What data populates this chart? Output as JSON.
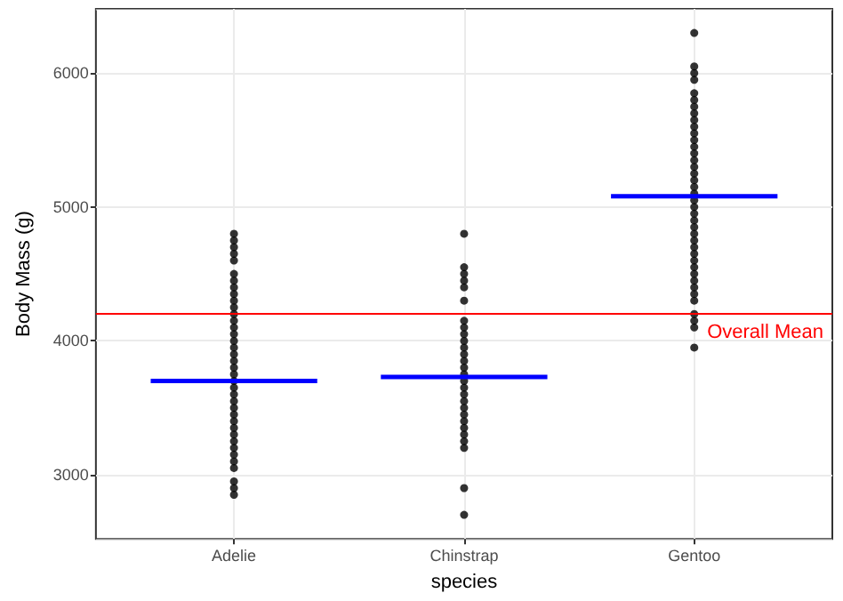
{
  "chart_data": {
    "type": "scatter",
    "xlabel": "species",
    "ylabel": "Body Mass (g)",
    "categories": [
      "Adelie",
      "Chinstrap",
      "Gentoo"
    ],
    "series": [
      {
        "color": "#000000",
        "x": [
          "Adelie",
          "Adelie",
          "Adelie",
          "Adelie",
          "Adelie",
          "Adelie",
          "Adelie",
          "Adelie",
          "Adelie",
          "Adelie",
          "Adelie",
          "Adelie",
          "Adelie",
          "Adelie",
          "Adelie",
          "Adelie",
          "Adelie",
          "Adelie",
          "Adelie",
          "Adelie",
          "Adelie",
          "Adelie",
          "Adelie",
          "Adelie",
          "Adelie",
          "Adelie",
          "Adelie",
          "Adelie",
          "Adelie",
          "Adelie",
          "Adelie",
          "Adelie",
          "Adelie",
          "Adelie",
          "Adelie",
          "Adelie",
          "Adelie",
          "Adelie"
        ],
        "values": [
          2850,
          2900,
          2950,
          3050,
          3100,
          3150,
          3200,
          3250,
          3300,
          3350,
          3400,
          3450,
          3500,
          3550,
          3600,
          3650,
          3700,
          3750,
          3800,
          3850,
          3900,
          3950,
          4000,
          4050,
          4100,
          4150,
          4200,
          4250,
          4300,
          4350,
          4400,
          4450,
          4500,
          4600,
          4650,
          4700,
          4750,
          4800
        ]
      },
      {
        "color": "#000000",
        "x": [
          "Chinstrap",
          "Chinstrap",
          "Chinstrap",
          "Chinstrap",
          "Chinstrap",
          "Chinstrap",
          "Chinstrap",
          "Chinstrap",
          "Chinstrap",
          "Chinstrap",
          "Chinstrap",
          "Chinstrap",
          "Chinstrap",
          "Chinstrap",
          "Chinstrap",
          "Chinstrap",
          "Chinstrap",
          "Chinstrap",
          "Chinstrap",
          "Chinstrap",
          "Chinstrap",
          "Chinstrap",
          "Chinstrap",
          "Chinstrap",
          "Chinstrap",
          "Chinstrap",
          "Chinstrap",
          "Chinstrap"
        ],
        "values": [
          2700,
          2900,
          3200,
          3250,
          3300,
          3350,
          3400,
          3450,
          3500,
          3550,
          3600,
          3650,
          3700,
          3750,
          3800,
          3850,
          3900,
          3950,
          4000,
          4050,
          4100,
          4150,
          4300,
          4400,
          4450,
          4500,
          4550,
          4800
        ]
      },
      {
        "color": "#000000",
        "x": [
          "Gentoo",
          "Gentoo",
          "Gentoo",
          "Gentoo",
          "Gentoo",
          "Gentoo",
          "Gentoo",
          "Gentoo",
          "Gentoo",
          "Gentoo",
          "Gentoo",
          "Gentoo",
          "Gentoo",
          "Gentoo",
          "Gentoo",
          "Gentoo",
          "Gentoo",
          "Gentoo",
          "Gentoo",
          "Gentoo",
          "Gentoo",
          "Gentoo",
          "Gentoo",
          "Gentoo",
          "Gentoo",
          "Gentoo",
          "Gentoo",
          "Gentoo",
          "Gentoo",
          "Gentoo",
          "Gentoo",
          "Gentoo",
          "Gentoo",
          "Gentoo",
          "Gentoo",
          "Gentoo",
          "Gentoo",
          "Gentoo",
          "Gentoo",
          "Gentoo"
        ],
        "values": [
          3950,
          4100,
          4150,
          4200,
          4300,
          4350,
          4400,
          4450,
          4500,
          4550,
          4600,
          4650,
          4700,
          4750,
          4800,
          4850,
          4900,
          4950,
          5000,
          5050,
          5100,
          5150,
          5200,
          5250,
          5300,
          5350,
          5400,
          5450,
          5500,
          5550,
          5600,
          5650,
          5700,
          5750,
          5800,
          5850,
          5950,
          6000,
          6050,
          6300
        ]
      },
      {
        "type": "box",
        "color": "#0000ff",
        "boxes": [
          {
            "low": 3700,
            "q1": 3700,
            "median": 3700,
            "q3": 3700,
            "high": 3700
          },
          {
            "low": 3730,
            "q1": 3730,
            "median": 3730,
            "q3": 3730,
            "high": 3730
          },
          {
            "low": 5080,
            "q1": 5080,
            "median": 5080,
            "q3": 5080,
            "high": 5080
          }
        ]
      }
    ],
    "ref_lines": [
      {
        "axis": "y",
        "value": 4202,
        "label": "Overall Mean",
        "color": "#ff0000"
      }
    ],
    "ylim": [
      2520,
      6480
    ],
    "yticks": [
      3000,
      4000,
      5000,
      6000
    ],
    "grid": true,
    "marker": "circle"
  }
}
